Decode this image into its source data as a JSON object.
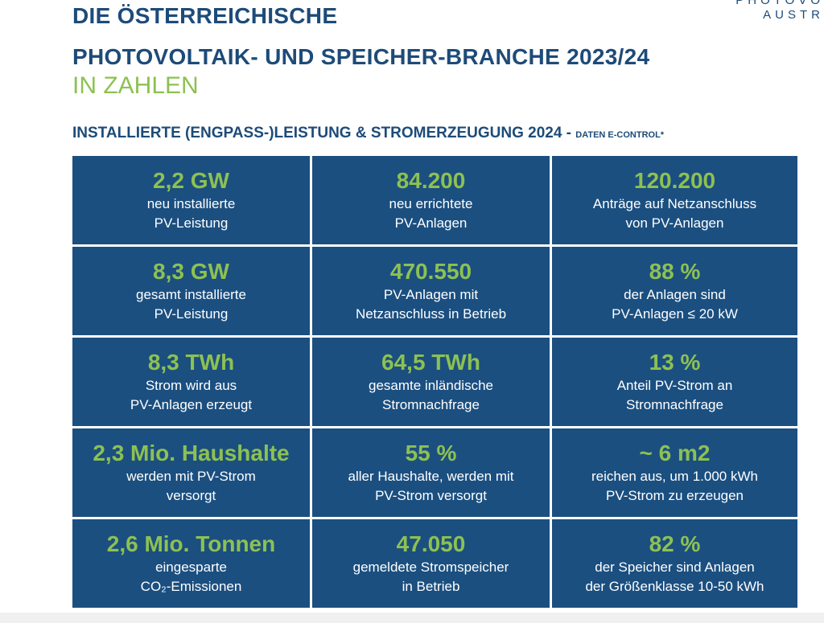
{
  "logo": {
    "line1": "PHOTOVO",
    "line2": "AUSTR"
  },
  "title": {
    "line1": "DIE ÖSTERREICHISCHE",
    "line2": "PHOTOVOLTAIK- UND SPEICHER-BRANCHE 2023/24",
    "line3": "IN ZAHLEN"
  },
  "subtitle": {
    "main": "INSTALLIERTE (ENGPASS-)LEISTUNG & STROMERZEUGUNG 2024 - ",
    "source": "DATEN E-CONTROL*"
  },
  "cells": [
    {
      "value": "2,2 GW",
      "l1": "neu installierte",
      "l2": "PV-Leistung"
    },
    {
      "value": "84.200",
      "l1": "neu errichtete",
      "l2": "PV-Anlagen"
    },
    {
      "value": "120.200",
      "l1": "Anträge auf Netzanschluss",
      "l2": "von PV-Anlagen"
    },
    {
      "value": "8,3 GW",
      "l1": "gesamt installierte",
      "l2": "PV-Leistung"
    },
    {
      "value": "470.550",
      "l1": "PV-Anlagen mit",
      "l2": "Netzanschluss in Betrieb"
    },
    {
      "value": "88 %",
      "l1": "der Anlagen sind",
      "l2": "PV-Anlagen ≤ 20 kW"
    },
    {
      "value": "8,3 TWh",
      "l1": "Strom wird aus",
      "l2": "PV-Anlagen erzeugt"
    },
    {
      "value": "64,5 TWh",
      "l1": "gesamte inländische",
      "l2": "Stromnachfrage"
    },
    {
      "value": "13 %",
      "l1": "Anteil PV-Strom an",
      "l2": "Stromnachfrage"
    },
    {
      "value": "2,3 Mio. Haushalte",
      "l1": "werden mit PV-Strom",
      "l2": "versorgt"
    },
    {
      "value": "55 %",
      "l1": "aller Haushalte, werden mit",
      "l2": "PV-Strom versorgt"
    },
    {
      "value": "~ 6 m2",
      "l1": "reichen aus, um 1.000 kWh",
      "l2": "PV-Strom zu erzeugen"
    },
    {
      "value": "2,6 Mio. Tonnen",
      "l1": "eingesparte",
      "l2": "CO₂-Emissionen"
    },
    {
      "value": "47.050",
      "l1": "gemeldete Stromspeicher",
      "l2": "in Betrieb"
    },
    {
      "value": "82 %",
      "l1": "der Speicher sind Anlagen",
      "l2": "der Größenklasse 10-50 kWh"
    }
  ],
  "colors": {
    "tile": "#1b4f80",
    "accent": "#8dc152",
    "heading": "#1d4b79"
  }
}
